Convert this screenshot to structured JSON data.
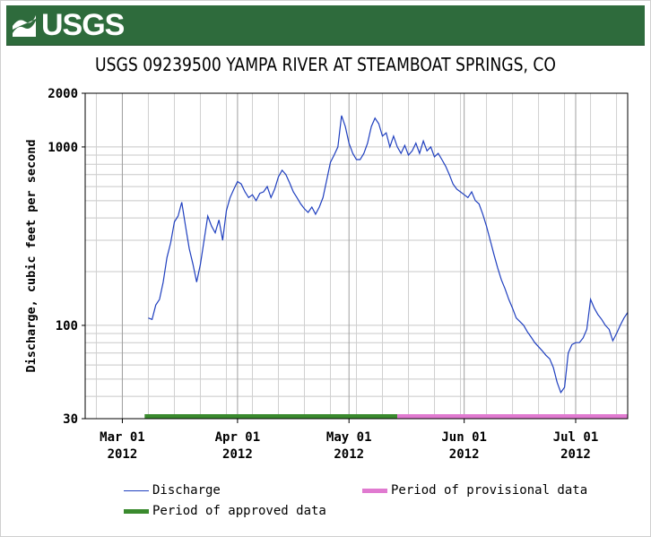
{
  "header": {
    "logo_text": "USGS",
    "brand_color": "#2e6b3c"
  },
  "chart_data": {
    "type": "line",
    "title": "USGS 09239500 YAMPA RIVER AT STEAMBOAT SPRINGS, CO",
    "ylabel": "Discharge, cubic feet per second",
    "xlabel": "",
    "y_scale": "log",
    "ylim": [
      30,
      2000
    ],
    "y_ticks": [
      30,
      100,
      1000,
      2000
    ],
    "xlim": [
      "2012-02-20",
      "2012-07-15"
    ],
    "x_ticks": [
      {
        "date": "2012-03-01",
        "label_top": "Mar 01",
        "label_bottom": "2012"
      },
      {
        "date": "2012-04-01",
        "label_top": "Apr 01",
        "label_bottom": "2012"
      },
      {
        "date": "2012-05-01",
        "label_top": "May 01",
        "label_bottom": "2012"
      },
      {
        "date": "2012-06-01",
        "label_top": "Jun 01",
        "label_bottom": "2012"
      },
      {
        "date": "2012-07-01",
        "label_top": "Jul 01",
        "label_bottom": "2012"
      }
    ],
    "grid": true,
    "legend_position": "bottom",
    "series": [
      {
        "name": "Discharge",
        "color": "#1f3fbf",
        "points": [
          [
            "2012-03-08",
            110
          ],
          [
            "2012-03-09",
            108
          ],
          [
            "2012-03-10",
            130
          ],
          [
            "2012-03-11",
            140
          ],
          [
            "2012-03-12",
            175
          ],
          [
            "2012-03-13",
            240
          ],
          [
            "2012-03-14",
            290
          ],
          [
            "2012-03-15",
            380
          ],
          [
            "2012-03-16",
            410
          ],
          [
            "2012-03-17",
            490
          ],
          [
            "2012-03-18",
            360
          ],
          [
            "2012-03-19",
            270
          ],
          [
            "2012-03-20",
            220
          ],
          [
            "2012-03-21",
            175
          ],
          [
            "2012-03-22",
            220
          ],
          [
            "2012-03-23",
            300
          ],
          [
            "2012-03-24",
            410
          ],
          [
            "2012-03-25",
            360
          ],
          [
            "2012-03-26",
            330
          ],
          [
            "2012-03-27",
            390
          ],
          [
            "2012-03-28",
            300
          ],
          [
            "2012-03-29",
            440
          ],
          [
            "2012-03-30",
            520
          ],
          [
            "2012-03-31",
            580
          ],
          [
            "2012-04-01",
            640
          ],
          [
            "2012-04-02",
            620
          ],
          [
            "2012-04-03",
            560
          ],
          [
            "2012-04-04",
            520
          ],
          [
            "2012-04-05",
            540
          ],
          [
            "2012-04-06",
            500
          ],
          [
            "2012-04-07",
            550
          ],
          [
            "2012-04-08",
            560
          ],
          [
            "2012-04-09",
            600
          ],
          [
            "2012-04-10",
            520
          ],
          [
            "2012-04-11",
            580
          ],
          [
            "2012-04-12",
            680
          ],
          [
            "2012-04-13",
            740
          ],
          [
            "2012-04-14",
            700
          ],
          [
            "2012-04-15",
            630
          ],
          [
            "2012-04-16",
            560
          ],
          [
            "2012-04-17",
            520
          ],
          [
            "2012-04-18",
            480
          ],
          [
            "2012-04-19",
            450
          ],
          [
            "2012-04-20",
            430
          ],
          [
            "2012-04-21",
            460
          ],
          [
            "2012-04-22",
            420
          ],
          [
            "2012-04-23",
            460
          ],
          [
            "2012-04-24",
            520
          ],
          [
            "2012-04-25",
            650
          ],
          [
            "2012-04-26",
            820
          ],
          [
            "2012-04-27",
            900
          ],
          [
            "2012-04-28",
            1000
          ],
          [
            "2012-04-29",
            1500
          ],
          [
            "2012-04-30",
            1300
          ],
          [
            "2012-05-01",
            1050
          ],
          [
            "2012-05-02",
            920
          ],
          [
            "2012-05-03",
            850
          ],
          [
            "2012-05-04",
            850
          ],
          [
            "2012-05-05",
            920
          ],
          [
            "2012-05-06",
            1050
          ],
          [
            "2012-05-07",
            1300
          ],
          [
            "2012-05-08",
            1450
          ],
          [
            "2012-05-09",
            1350
          ],
          [
            "2012-05-10",
            1150
          ],
          [
            "2012-05-11",
            1200
          ],
          [
            "2012-05-12",
            1000
          ],
          [
            "2012-05-13",
            1150
          ],
          [
            "2012-05-14",
            1000
          ],
          [
            "2012-05-15",
            920
          ],
          [
            "2012-05-16",
            1020
          ],
          [
            "2012-05-17",
            900
          ],
          [
            "2012-05-18",
            950
          ],
          [
            "2012-05-19",
            1050
          ],
          [
            "2012-05-20",
            920
          ],
          [
            "2012-05-21",
            1080
          ],
          [
            "2012-05-22",
            950
          ],
          [
            "2012-05-23",
            1000
          ],
          [
            "2012-05-24",
            880
          ],
          [
            "2012-05-25",
            920
          ],
          [
            "2012-05-26",
            850
          ],
          [
            "2012-05-27",
            780
          ],
          [
            "2012-05-28",
            700
          ],
          [
            "2012-05-29",
            620
          ],
          [
            "2012-05-30",
            580
          ],
          [
            "2012-05-31",
            560
          ],
          [
            "2012-06-01",
            540
          ],
          [
            "2012-06-02",
            520
          ],
          [
            "2012-06-03",
            560
          ],
          [
            "2012-06-04",
            500
          ],
          [
            "2012-06-05",
            480
          ],
          [
            "2012-06-06",
            420
          ],
          [
            "2012-06-07",
            360
          ],
          [
            "2012-06-08",
            300
          ],
          [
            "2012-06-09",
            250
          ],
          [
            "2012-06-10",
            210
          ],
          [
            "2012-06-11",
            180
          ],
          [
            "2012-06-12",
            160
          ],
          [
            "2012-06-13",
            140
          ],
          [
            "2012-06-14",
            125
          ],
          [
            "2012-06-15",
            110
          ],
          [
            "2012-06-16",
            105
          ],
          [
            "2012-06-17",
            100
          ],
          [
            "2012-06-18",
            92
          ],
          [
            "2012-06-19",
            86
          ],
          [
            "2012-06-20",
            80
          ],
          [
            "2012-06-21",
            76
          ],
          [
            "2012-06-22",
            72
          ],
          [
            "2012-06-23",
            68
          ],
          [
            "2012-06-24",
            65
          ],
          [
            "2012-06-25",
            58
          ],
          [
            "2012-06-26",
            48
          ],
          [
            "2012-06-27",
            42
          ],
          [
            "2012-06-28",
            45
          ],
          [
            "2012-06-29",
            70
          ],
          [
            "2012-06-30",
            78
          ],
          [
            "2012-07-01",
            80
          ],
          [
            "2012-07-02",
            80
          ],
          [
            "2012-07-03",
            85
          ],
          [
            "2012-07-04",
            95
          ],
          [
            "2012-07-05",
            140
          ],
          [
            "2012-07-06",
            125
          ],
          [
            "2012-07-07",
            115
          ],
          [
            "2012-07-08",
            108
          ],
          [
            "2012-07-09",
            100
          ],
          [
            "2012-07-10",
            95
          ],
          [
            "2012-07-11",
            82
          ],
          [
            "2012-07-12",
            90
          ],
          [
            "2012-07-13",
            100
          ],
          [
            "2012-07-14",
            110
          ],
          [
            "2012-07-15",
            118
          ]
        ]
      }
    ],
    "periods": [
      {
        "name": "Period of approved data",
        "color": "#3a8a2e",
        "start": "2012-03-07",
        "end": "2012-05-14"
      },
      {
        "name": "Period of provisional data",
        "color": "#e07ad0",
        "start": "2012-05-14",
        "end": "2012-07-15"
      }
    ]
  }
}
